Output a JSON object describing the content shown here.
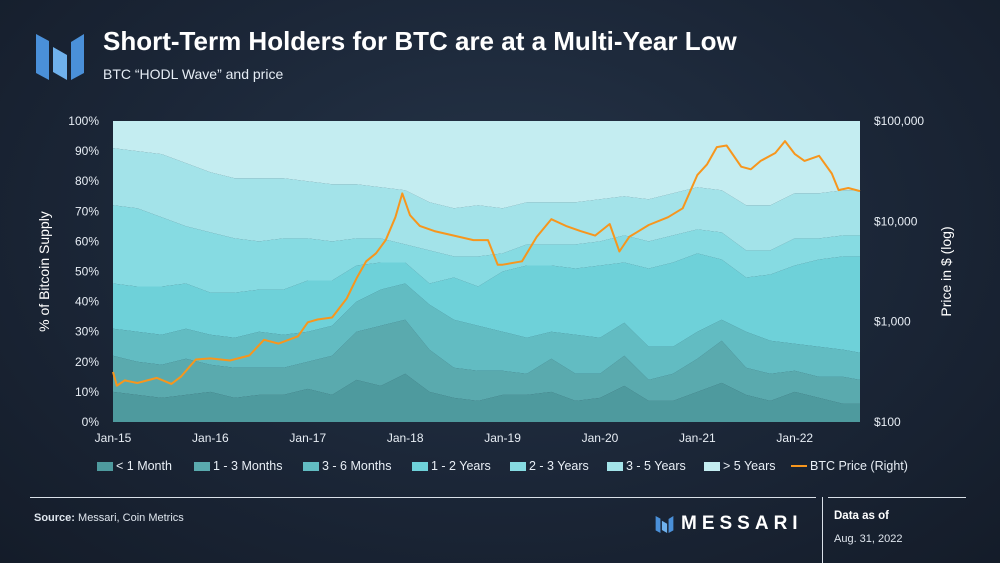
{
  "header": {
    "title": "Short-Term Holders for BTC are at a Multi-Year Low",
    "subtitle": "BTC “HODL Wave” and price"
  },
  "footer": {
    "source_label": "Source:",
    "source_text": "Messari, Coin Metrics",
    "brand": "MESSARI",
    "asof_label": "Data as of",
    "asof_date": "Aug. 31, 2022"
  },
  "chart_data": {
    "type": "area",
    "title": "Short-Term Holders for BTC are at a Multi-Year Low",
    "subtitle": "BTC “HODL Wave” and price",
    "ylabel": "% of Bitcoin Supply",
    "y2label": "Price in $ (log)",
    "ylim": [
      0,
      100
    ],
    "y2lim": [
      100,
      100000
    ],
    "y2scale": "log",
    "xlim": [
      2015.0,
      2022.67
    ],
    "xticks": [
      "Jan-15",
      "Jan-16",
      "Jan-17",
      "Jan-18",
      "Jan-19",
      "Jan-20",
      "Jan-21",
      "Jan-22"
    ],
    "yticks": [
      "0%",
      "10%",
      "20%",
      "30%",
      "40%",
      "50%",
      "60%",
      "70%",
      "80%",
      "90%",
      "100%"
    ],
    "y2ticks": [
      "$100",
      "$1,000",
      "$10,000",
      "$100,000"
    ],
    "stacked": true,
    "x": [
      2015.0,
      2015.25,
      2015.5,
      2015.75,
      2016.0,
      2016.25,
      2016.5,
      2016.75,
      2017.0,
      2017.25,
      2017.5,
      2017.75,
      2018.0,
      2018.25,
      2018.5,
      2018.75,
      2019.0,
      2019.25,
      2019.5,
      2019.75,
      2020.0,
      2020.25,
      2020.5,
      2020.75,
      2021.0,
      2021.25,
      2021.5,
      2021.75,
      2022.0,
      2022.25,
      2022.5,
      2022.67
    ],
    "series": [
      {
        "name": "< 1 Month",
        "color": "#4e9a9e",
        "values": [
          10,
          9,
          8,
          9,
          10,
          8,
          9,
          9,
          11,
          9,
          14,
          12,
          16,
          10,
          8,
          7,
          9,
          9,
          10,
          7,
          8,
          12,
          7,
          7,
          10,
          13,
          9,
          7,
          10,
          8,
          6,
          6
        ]
      },
      {
        "name": "1 - 3 Months",
        "color": "#5aaaae",
        "values": [
          12,
          11,
          11,
          12,
          9,
          10,
          9,
          9,
          9,
          13,
          16,
          20,
          18,
          14,
          10,
          10,
          8,
          7,
          11,
          9,
          8,
          10,
          7,
          9,
          11,
          14,
          9,
          9,
          7,
          7,
          9,
          8
        ]
      },
      {
        "name": "3 - 6 Months",
        "color": "#62bcc2",
        "values": [
          9,
          10,
          10,
          10,
          10,
          10,
          12,
          11,
          10,
          10,
          10,
          12,
          12,
          15,
          16,
          15,
          13,
          12,
          9,
          13,
          12,
          11,
          11,
          9,
          9,
          7,
          12,
          11,
          9,
          10,
          9,
          9
        ]
      },
      {
        "name": "1 - 2 Years",
        "color": "#6ed1d9",
        "values": [
          15,
          15,
          16,
          15,
          14,
          15,
          14,
          15,
          17,
          15,
          12,
          9,
          7,
          7,
          14,
          13,
          20,
          24,
          22,
          22,
          24,
          20,
          26,
          28,
          26,
          20,
          18,
          22,
          26,
          29,
          31,
          32
        ]
      },
      {
        "name": "2 - 3 Years",
        "color": "#86dbe2",
        "values": [
          26,
          26,
          23,
          19,
          20,
          18,
          16,
          17,
          14,
          13,
          9,
          8,
          6,
          11,
          7,
          10,
          6,
          7,
          7,
          8,
          8,
          9,
          9,
          9,
          8,
          9,
          9,
          8,
          9,
          7,
          7,
          7
        ]
      },
      {
        "name": "3 - 5 Years",
        "color": "#a3e3e9",
        "values": [
          19,
          19,
          21,
          21,
          20,
          20,
          21,
          20,
          19,
          19,
          18,
          17,
          18,
          16,
          16,
          17,
          15,
          14,
          14,
          14,
          14,
          13,
          14,
          14,
          14,
          14,
          15,
          15,
          15,
          15,
          15,
          15
        ]
      },
      {
        "name": "> 5 Years",
        "color": "#c4edf1",
        "values": [
          9,
          10,
          11,
          14,
          17,
          19,
          19,
          19,
          20,
          21,
          21,
          22,
          23,
          27,
          29,
          28,
          29,
          27,
          27,
          27,
          26,
          25,
          26,
          24,
          22,
          23,
          28,
          28,
          24,
          24,
          23,
          23
        ]
      }
    ],
    "price": {
      "name": "BTC Price (Right)",
      "color": "#f7961d",
      "x": [
        2015.0,
        2015.04,
        2015.12,
        2015.25,
        2015.45,
        2015.6,
        2015.7,
        2015.85,
        2016.0,
        2016.2,
        2016.4,
        2016.55,
        2016.7,
        2016.9,
        2017.0,
        2017.1,
        2017.25,
        2017.4,
        2017.5,
        2017.6,
        2017.7,
        2017.8,
        2017.9,
        2017.97,
        2018.05,
        2018.15,
        2018.3,
        2018.5,
        2018.7,
        2018.85,
        2018.95,
        2019.0,
        2019.2,
        2019.35,
        2019.5,
        2019.65,
        2019.8,
        2019.95,
        2020.1,
        2020.2,
        2020.3,
        2020.5,
        2020.7,
        2020.85,
        2021.0,
        2021.1,
        2021.2,
        2021.3,
        2021.45,
        2021.55,
        2021.65,
        2021.8,
        2021.9,
        2022.0,
        2022.1,
        2022.25,
        2022.38,
        2022.45,
        2022.55,
        2022.67
      ],
      "values": [
        315,
        230,
        260,
        245,
        275,
        240,
        285,
        420,
        430,
        410,
        460,
        660,
        605,
        715,
        985,
        1050,
        1100,
        1700,
        2700,
        4000,
        4800,
        6500,
        11000,
        19000,
        11500,
        9000,
        8000,
        7200,
        6500,
        6500,
        3700,
        3700,
        4000,
        7000,
        10500,
        9000,
        8000,
        7200,
        9400,
        5000,
        7000,
        9200,
        11000,
        13500,
        29000,
        37000,
        55000,
        57000,
        35000,
        33000,
        40000,
        48000,
        63000,
        47000,
        40000,
        45000,
        30000,
        20500,
        21500,
        20000
      ]
    }
  }
}
